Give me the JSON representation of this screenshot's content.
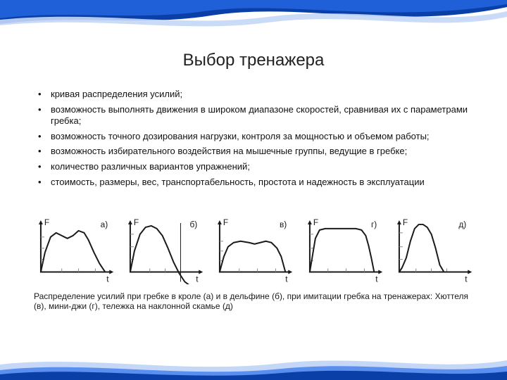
{
  "page": {
    "title": "Выбор тренажера",
    "title_fontsize": 24,
    "bullets_fontsize": 13,
    "caption_fontsize": 12,
    "background_color": "#ffffff",
    "text_color": "#111111",
    "bullets": [
      "кривая распределения усилий;",
      "возможность выполнять движения в широком диапазоне скоростей, сравнивая их с параметрами гребка;",
      "возможность точного дозирования нагрузки, контроля за мощностью и объемом работы;",
      "возможность избирательного воздействия на мышечные группы, ведущие в гребке;",
      "количество различных вариантов упражнений;",
      "стоимость, размеры, вес, транспортабельность, простота и надежность в эксплуатации"
    ],
    "caption": "Распределение усилий при гребке в кроле (а) и в дельфине (б), при имитации гребка на тренажерах: Хюттеля (в), мини-джи (г), тележка на наклонной скамье (д)"
  },
  "decor": {
    "swoosh_colors": {
      "dark": "#0a3fa8",
      "mid": "#1f5fd8",
      "light": "#5a8ff0",
      "pale": "#c4d7f7"
    }
  },
  "charts": {
    "common": {
      "viewbox_w": 120,
      "viewbox_h": 96,
      "axis_color": "#1a1a1a",
      "axis_width": 2,
      "curve_color": "#1a1a1a",
      "curve_width": 2,
      "tick_color": "#888888",
      "tick_width": 1,
      "label_font_size": 12,
      "y_label": "F",
      "x_label": "t",
      "xlim": [
        0,
        100
      ],
      "ylim": [
        0,
        80
      ]
    },
    "panels": [
      {
        "id": "a",
        "label": "а)",
        "type": "line",
        "curve": [
          [
            12,
            78
          ],
          [
            18,
            50
          ],
          [
            26,
            28
          ],
          [
            34,
            22
          ],
          [
            42,
            26
          ],
          [
            50,
            30
          ],
          [
            58,
            26
          ],
          [
            66,
            19
          ],
          [
            74,
            22
          ],
          [
            80,
            32
          ],
          [
            88,
            50
          ],
          [
            96,
            66
          ],
          [
            104,
            78
          ]
        ],
        "ticks_y": [
          28,
          44,
          60
        ],
        "ticks_x": [
          42,
          66,
          90
        ]
      },
      {
        "id": "b",
        "label": "б)",
        "type": "line",
        "curve": [
          [
            12,
            78
          ],
          [
            18,
            48
          ],
          [
            26,
            24
          ],
          [
            34,
            14
          ],
          [
            42,
            12
          ],
          [
            50,
            16
          ],
          [
            58,
            26
          ],
          [
            66,
            44
          ],
          [
            74,
            64
          ],
          [
            82,
            80
          ],
          [
            90,
            92
          ],
          [
            98,
            98
          ]
        ],
        "ticks_y": [
          24,
          42,
          60
        ],
        "ticks_x": [
          40,
          62,
          84
        ],
        "extra_vline_x": 84
      },
      {
        "id": "v",
        "label": "в)",
        "type": "line",
        "curve": [
          [
            12,
            78
          ],
          [
            18,
            56
          ],
          [
            24,
            42
          ],
          [
            32,
            36
          ],
          [
            42,
            34
          ],
          [
            54,
            36
          ],
          [
            62,
            38
          ],
          [
            70,
            36
          ],
          [
            78,
            34
          ],
          [
            86,
            36
          ],
          [
            94,
            44
          ],
          [
            100,
            56
          ],
          [
            106,
            78
          ]
        ],
        "ticks_y": [
          34,
          48,
          62
        ],
        "ticks_x": [
          40,
          66,
          92
        ]
      },
      {
        "id": "g",
        "label": "г)",
        "type": "line",
        "curve": [
          [
            12,
            78
          ],
          [
            16,
            54
          ],
          [
            20,
            30
          ],
          [
            26,
            18
          ],
          [
            34,
            16
          ],
          [
            48,
            16
          ],
          [
            64,
            16
          ],
          [
            78,
            16
          ],
          [
            86,
            18
          ],
          [
            92,
            26
          ],
          [
            96,
            40
          ],
          [
            100,
            58
          ],
          [
            104,
            78
          ]
        ],
        "ticks_y": [
          24,
          44,
          62
        ],
        "ticks_x": [
          38,
          64,
          90
        ]
      },
      {
        "id": "d",
        "label": "д)",
        "type": "line",
        "curve": [
          [
            12,
            78
          ],
          [
            16,
            72
          ],
          [
            22,
            58
          ],
          [
            28,
            34
          ],
          [
            34,
            16
          ],
          [
            40,
            10
          ],
          [
            46,
            10
          ],
          [
            52,
            14
          ],
          [
            58,
            24
          ],
          [
            64,
            44
          ],
          [
            70,
            68
          ],
          [
            76,
            78
          ],
          [
            104,
            78
          ]
        ],
        "ticks_y": [
          22,
          42,
          60
        ],
        "ticks_x": [
          36,
          58,
          80
        ]
      }
    ]
  }
}
